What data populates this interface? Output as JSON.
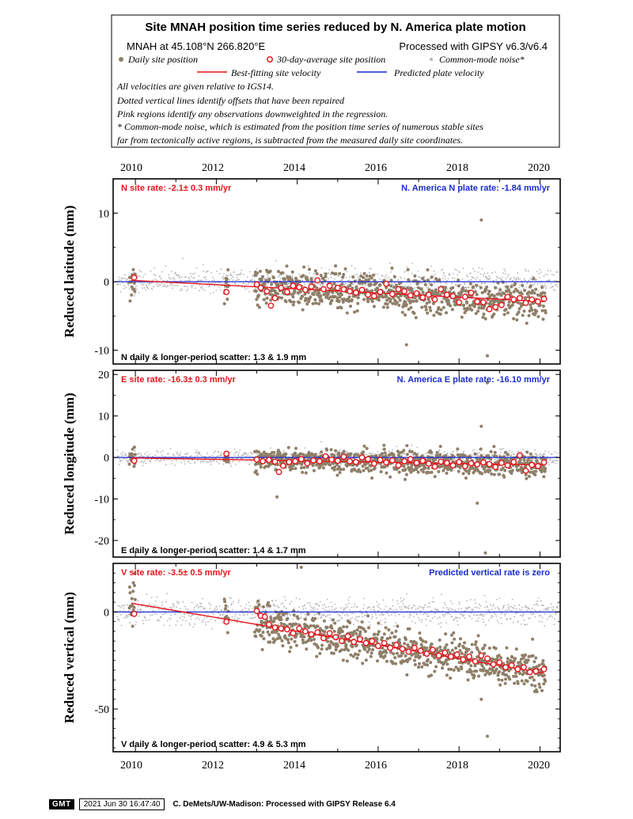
{
  "header": {
    "title": "Site MNAH position time series reduced by N. America plate motion",
    "site_coords": "MNAH at 45.108°N 266.820°E",
    "processed_with": "Processed with GIPSY v6.3/v6.4",
    "legend": {
      "daily": "Daily site position",
      "avg": "30-day-average site position",
      "cm": "Common-mode noise*",
      "best_fit": "Best-fitting site velocity",
      "predicted": "Predicted plate velocity"
    },
    "notes": [
      "All velocities are given relative to IGS14.",
      "Dotted vertical lines identify offsets that have been repaired",
      "Pink regions identify any observations downweighted in the regression.",
      "* Common-mode noise, which is estimated from the position time series of numerous stable sites",
      "far from tectonically active regions, is subtracted from the measured daily site coordinates."
    ]
  },
  "colors": {
    "daily": "#8f7f68",
    "avg_stroke": "#e8141c",
    "best_fit": "#e8141c",
    "common_mode": "#b4b4b8",
    "predicted": "#1a2bd6",
    "site_rate_text": "#e8141c",
    "plate_rate_text": "#1a2bd6"
  },
  "footer": {
    "logo": "GMT",
    "timestamp": "2021 Jun 30 16:47:40",
    "credit": "C. DeMets/UW-Madison: Processed with GIPSY Release 6.4"
  },
  "chart_data": [
    {
      "type": "scatter",
      "component": "N",
      "ylabel": "Reduced latitude (mm)",
      "xlim": [
        2009.45,
        2020.5
      ],
      "ylim": [
        -12,
        15
      ],
      "yticks": [
        -10,
        0,
        10
      ],
      "xticks": [
        2010,
        2012,
        2014,
        2016,
        2018,
        2020
      ],
      "site_rate": "N site rate:  -2.1± 0.3 mm/yr",
      "plate_rate": "N. America N plate rate: -1.84 mm/yr",
      "scatter": "N daily & longer-period scatter:   1.3 &   1.9 mm",
      "predicted_line": 0,
      "best_fit": {
        "x": [
          2009.9,
          2020.1
        ],
        "y": [
          0.2,
          -2.9
        ]
      },
      "data_segments": [
        [
          2009.85,
          2010.0
        ],
        [
          2012.2,
          2012.3
        ],
        [
          2012.95,
          2020.15
        ]
      ],
      "outliers": [
        {
          "x": 2018.55,
          "y": 9.0
        },
        {
          "x": 2018.7,
          "y": -10.8
        },
        {
          "x": 2016.7,
          "y": -9.2
        },
        {
          "x": 2014.3,
          "y": 1.8
        }
      ],
      "avg_points": [
        {
          "x": 2009.97,
          "y": 0.6
        },
        {
          "x": 2012.25,
          "y": -1.5
        },
        {
          "x": 2013.0,
          "y": -0.4
        },
        {
          "x": 2013.1,
          "y": -0.9
        },
        {
          "x": 2013.25,
          "y": -1.4
        },
        {
          "x": 2013.35,
          "y": -3.5
        },
        {
          "x": 2013.45,
          "y": -2.4
        },
        {
          "x": 2013.6,
          "y": -0.9
        },
        {
          "x": 2013.75,
          "y": -1.5
        },
        {
          "x": 2013.9,
          "y": -0.6
        },
        {
          "x": 2014.05,
          "y": -0.8
        },
        {
          "x": 2014.2,
          "y": -1.2
        },
        {
          "x": 2014.35,
          "y": -0.7
        },
        {
          "x": 2014.5,
          "y": 0.2
        },
        {
          "x": 2014.65,
          "y": -1.1
        },
        {
          "x": 2014.8,
          "y": -0.6
        },
        {
          "x": 2015.0,
          "y": -0.9
        },
        {
          "x": 2015.15,
          "y": -1.1
        },
        {
          "x": 2015.3,
          "y": -1.4
        },
        {
          "x": 2015.45,
          "y": -1.6
        },
        {
          "x": 2015.6,
          "y": -1.2
        },
        {
          "x": 2015.75,
          "y": -1.9
        },
        {
          "x": 2015.9,
          "y": -2.1
        },
        {
          "x": 2016.05,
          "y": -1.5
        },
        {
          "x": 2016.2,
          "y": -0.3
        },
        {
          "x": 2016.35,
          "y": -1.8
        },
        {
          "x": 2016.5,
          "y": -1.1
        },
        {
          "x": 2016.65,
          "y": -1.4
        },
        {
          "x": 2016.8,
          "y": -2.0
        },
        {
          "x": 2016.95,
          "y": -1.7
        },
        {
          "x": 2017.1,
          "y": -2.3
        },
        {
          "x": 2017.25,
          "y": -1.9
        },
        {
          "x": 2017.4,
          "y": -2.6
        },
        {
          "x": 2017.55,
          "y": -1.1
        },
        {
          "x": 2017.7,
          "y": -1.9
        },
        {
          "x": 2017.85,
          "y": -2.1
        },
        {
          "x": 2018.0,
          "y": -3.0
        },
        {
          "x": 2018.15,
          "y": -2.2
        },
        {
          "x": 2018.3,
          "y": -1.6
        },
        {
          "x": 2018.45,
          "y": -2.9
        },
        {
          "x": 2018.6,
          "y": -3.0
        },
        {
          "x": 2018.75,
          "y": -4.0
        },
        {
          "x": 2018.9,
          "y": -3.7
        },
        {
          "x": 2019.05,
          "y": -3.4
        },
        {
          "x": 2019.2,
          "y": -2.2
        },
        {
          "x": 2019.35,
          "y": -2.6
        },
        {
          "x": 2019.5,
          "y": -2.4
        },
        {
          "x": 2019.65,
          "y": -3.1
        },
        {
          "x": 2019.8,
          "y": -2.6
        },
        {
          "x": 2019.95,
          "y": -2.9
        },
        {
          "x": 2020.1,
          "y": -2.5
        }
      ]
    },
    {
      "type": "scatter",
      "component": "E",
      "ylabel": "Reduced longitude (mm)",
      "xlim": [
        2009.45,
        2020.5
      ],
      "ylim": [
        -24,
        21
      ],
      "yticks": [
        -20,
        -10,
        0,
        10,
        20
      ],
      "xticks": [
        2010,
        2012,
        2014,
        2016,
        2018,
        2020
      ],
      "site_rate": "E site rate: -16.3± 0.3 mm/yr",
      "plate_rate": "N. America E plate rate: -16.10 mm/yr",
      "scatter": "E daily & longer-period scatter:   1.4 &   1.7 mm",
      "predicted_line": 0,
      "best_fit": {
        "x": [
          2009.9,
          2020.1
        ],
        "y": [
          -0.1,
          -1.8
        ]
      },
      "data_segments": [
        [
          2009.85,
          2010.0
        ],
        [
          2012.2,
          2012.3
        ],
        [
          2012.95,
          2020.15
        ]
      ],
      "outliers": [
        {
          "x": 2018.55,
          "y": 7.5
        },
        {
          "x": 2018.65,
          "y": -23.0
        },
        {
          "x": 2018.45,
          "y": -11.0
        },
        {
          "x": 2013.5,
          "y": -9.5
        },
        {
          "x": 2018.7,
          "y": 18.0
        }
      ],
      "avg_points": [
        {
          "x": 2009.97,
          "y": -0.8
        },
        {
          "x": 2012.25,
          "y": 0.9
        },
        {
          "x": 2013.0,
          "y": -0.5
        },
        {
          "x": 2013.15,
          "y": -0.9
        },
        {
          "x": 2013.3,
          "y": -0.6
        },
        {
          "x": 2013.45,
          "y": -1.0
        },
        {
          "x": 2013.55,
          "y": -3.5
        },
        {
          "x": 2013.65,
          "y": -2.0
        },
        {
          "x": 2013.8,
          "y": -1.1
        },
        {
          "x": 2013.95,
          "y": -0.9
        },
        {
          "x": 2014.1,
          "y": -0.4
        },
        {
          "x": 2014.25,
          "y": -1.4
        },
        {
          "x": 2014.4,
          "y": -0.7
        },
        {
          "x": 2014.55,
          "y": -0.9
        },
        {
          "x": 2014.7,
          "y": 0.3
        },
        {
          "x": 2014.85,
          "y": -0.5
        },
        {
          "x": 2015.0,
          "y": -0.8
        },
        {
          "x": 2015.15,
          "y": 0.2
        },
        {
          "x": 2015.3,
          "y": -0.9
        },
        {
          "x": 2015.45,
          "y": -1.1
        },
        {
          "x": 2015.6,
          "y": 0.0
        },
        {
          "x": 2015.75,
          "y": -0.4
        },
        {
          "x": 2015.9,
          "y": -1.5
        },
        {
          "x": 2016.05,
          "y": -0.6
        },
        {
          "x": 2016.2,
          "y": -1.2
        },
        {
          "x": 2016.35,
          "y": -0.7
        },
        {
          "x": 2016.5,
          "y": -1.9
        },
        {
          "x": 2016.65,
          "y": -0.9
        },
        {
          "x": 2016.8,
          "y": -0.4
        },
        {
          "x": 2016.95,
          "y": -1.3
        },
        {
          "x": 2017.1,
          "y": -0.8
        },
        {
          "x": 2017.25,
          "y": -1.5
        },
        {
          "x": 2017.4,
          "y": -2.2
        },
        {
          "x": 2017.55,
          "y": -1.0
        },
        {
          "x": 2017.7,
          "y": -1.3
        },
        {
          "x": 2017.85,
          "y": -1.9
        },
        {
          "x": 2018.0,
          "y": -1.1
        },
        {
          "x": 2018.15,
          "y": -2.1
        },
        {
          "x": 2018.3,
          "y": -1.4
        },
        {
          "x": 2018.45,
          "y": -1.7
        },
        {
          "x": 2018.6,
          "y": -1.2
        },
        {
          "x": 2018.75,
          "y": -1.6
        },
        {
          "x": 2018.9,
          "y": -2.3
        },
        {
          "x": 2019.05,
          "y": -1.3
        },
        {
          "x": 2019.2,
          "y": -1.9
        },
        {
          "x": 2019.35,
          "y": -1.1
        },
        {
          "x": 2019.5,
          "y": 0.5
        },
        {
          "x": 2019.65,
          "y": -3.2
        },
        {
          "x": 2019.8,
          "y": -1.8
        },
        {
          "x": 2019.95,
          "y": -2.1
        },
        {
          "x": 2020.1,
          "y": -1.2
        }
      ]
    },
    {
      "type": "scatter",
      "component": "V",
      "ylabel": "Reduced vertical (mm)",
      "xlim": [
        2009.45,
        2020.5
      ],
      "ylim": [
        -72,
        25
      ],
      "yticks": [
        -50,
        0
      ],
      "xticks": [
        2010,
        2012,
        2014,
        2016,
        2018,
        2020
      ],
      "site_rate": "V site rate:  -3.5± 0.5 mm/yr",
      "plate_rate": "Predicted vertical rate is zero",
      "scatter": "V daily & longer-period scatter:   4.9 &   5.3 mm",
      "predicted_line": 0,
      "best_fit": {
        "x": [
          2009.9,
          2020.1
        ],
        "y": [
          4.5,
          -31.5
        ]
      },
      "data_segments": [
        [
          2009.85,
          2010.0
        ],
        [
          2012.2,
          2012.3
        ],
        [
          2012.95,
          2020.15
        ]
      ],
      "outliers": [
        {
          "x": 2014.1,
          "y": 23.0
        },
        {
          "x": 2018.7,
          "y": -64.0
        },
        {
          "x": 2018.55,
          "y": -45.0
        },
        {
          "x": 2009.95,
          "y": 15.0
        }
      ],
      "avg_points": [
        {
          "x": 2009.97,
          "y": -1.0
        },
        {
          "x": 2012.25,
          "y": -5.0
        },
        {
          "x": 2013.0,
          "y": 0.5
        },
        {
          "x": 2013.1,
          "y": -2.0
        },
        {
          "x": 2013.2,
          "y": -2.5
        },
        {
          "x": 2013.3,
          "y": -6.5
        },
        {
          "x": 2013.45,
          "y": -8.0
        },
        {
          "x": 2013.6,
          "y": -8.5
        },
        {
          "x": 2013.75,
          "y": -9.0
        },
        {
          "x": 2013.9,
          "y": -11.0
        },
        {
          "x": 2014.05,
          "y": -8.5
        },
        {
          "x": 2014.2,
          "y": -10.0
        },
        {
          "x": 2014.35,
          "y": -11.5
        },
        {
          "x": 2014.5,
          "y": -10.5
        },
        {
          "x": 2014.65,
          "y": -13.5
        },
        {
          "x": 2014.8,
          "y": -11.0
        },
        {
          "x": 2014.95,
          "y": -13.0
        },
        {
          "x": 2015.1,
          "y": -15.0
        },
        {
          "x": 2015.25,
          "y": -12.5
        },
        {
          "x": 2015.4,
          "y": -15.5
        },
        {
          "x": 2015.55,
          "y": -14.0
        },
        {
          "x": 2015.7,
          "y": -16.0
        },
        {
          "x": 2015.85,
          "y": -15.0
        },
        {
          "x": 2016.0,
          "y": -17.5
        },
        {
          "x": 2016.15,
          "y": -16.0
        },
        {
          "x": 2016.3,
          "y": -18.5
        },
        {
          "x": 2016.45,
          "y": -17.0
        },
        {
          "x": 2016.6,
          "y": -19.0
        },
        {
          "x": 2016.75,
          "y": -20.5
        },
        {
          "x": 2016.9,
          "y": -18.5
        },
        {
          "x": 2017.05,
          "y": -20.0
        },
        {
          "x": 2017.2,
          "y": -21.5
        },
        {
          "x": 2017.35,
          "y": -19.5
        },
        {
          "x": 2017.5,
          "y": -22.5
        },
        {
          "x": 2017.65,
          "y": -21.0
        },
        {
          "x": 2017.8,
          "y": -23.0
        },
        {
          "x": 2017.95,
          "y": -22.0
        },
        {
          "x": 2018.1,
          "y": -24.5
        },
        {
          "x": 2018.25,
          "y": -23.0
        },
        {
          "x": 2018.4,
          "y": -25.5
        },
        {
          "x": 2018.55,
          "y": -22.5
        },
        {
          "x": 2018.7,
          "y": -24.0
        },
        {
          "x": 2018.85,
          "y": -27.0
        },
        {
          "x": 2019.0,
          "y": -26.0
        },
        {
          "x": 2019.15,
          "y": -28.5
        },
        {
          "x": 2019.3,
          "y": -27.5
        },
        {
          "x": 2019.45,
          "y": -29.5
        },
        {
          "x": 2019.6,
          "y": -28.5
        },
        {
          "x": 2019.75,
          "y": -31.0
        },
        {
          "x": 2019.9,
          "y": -30.5
        },
        {
          "x": 2020.1,
          "y": -29.5
        }
      ]
    }
  ]
}
